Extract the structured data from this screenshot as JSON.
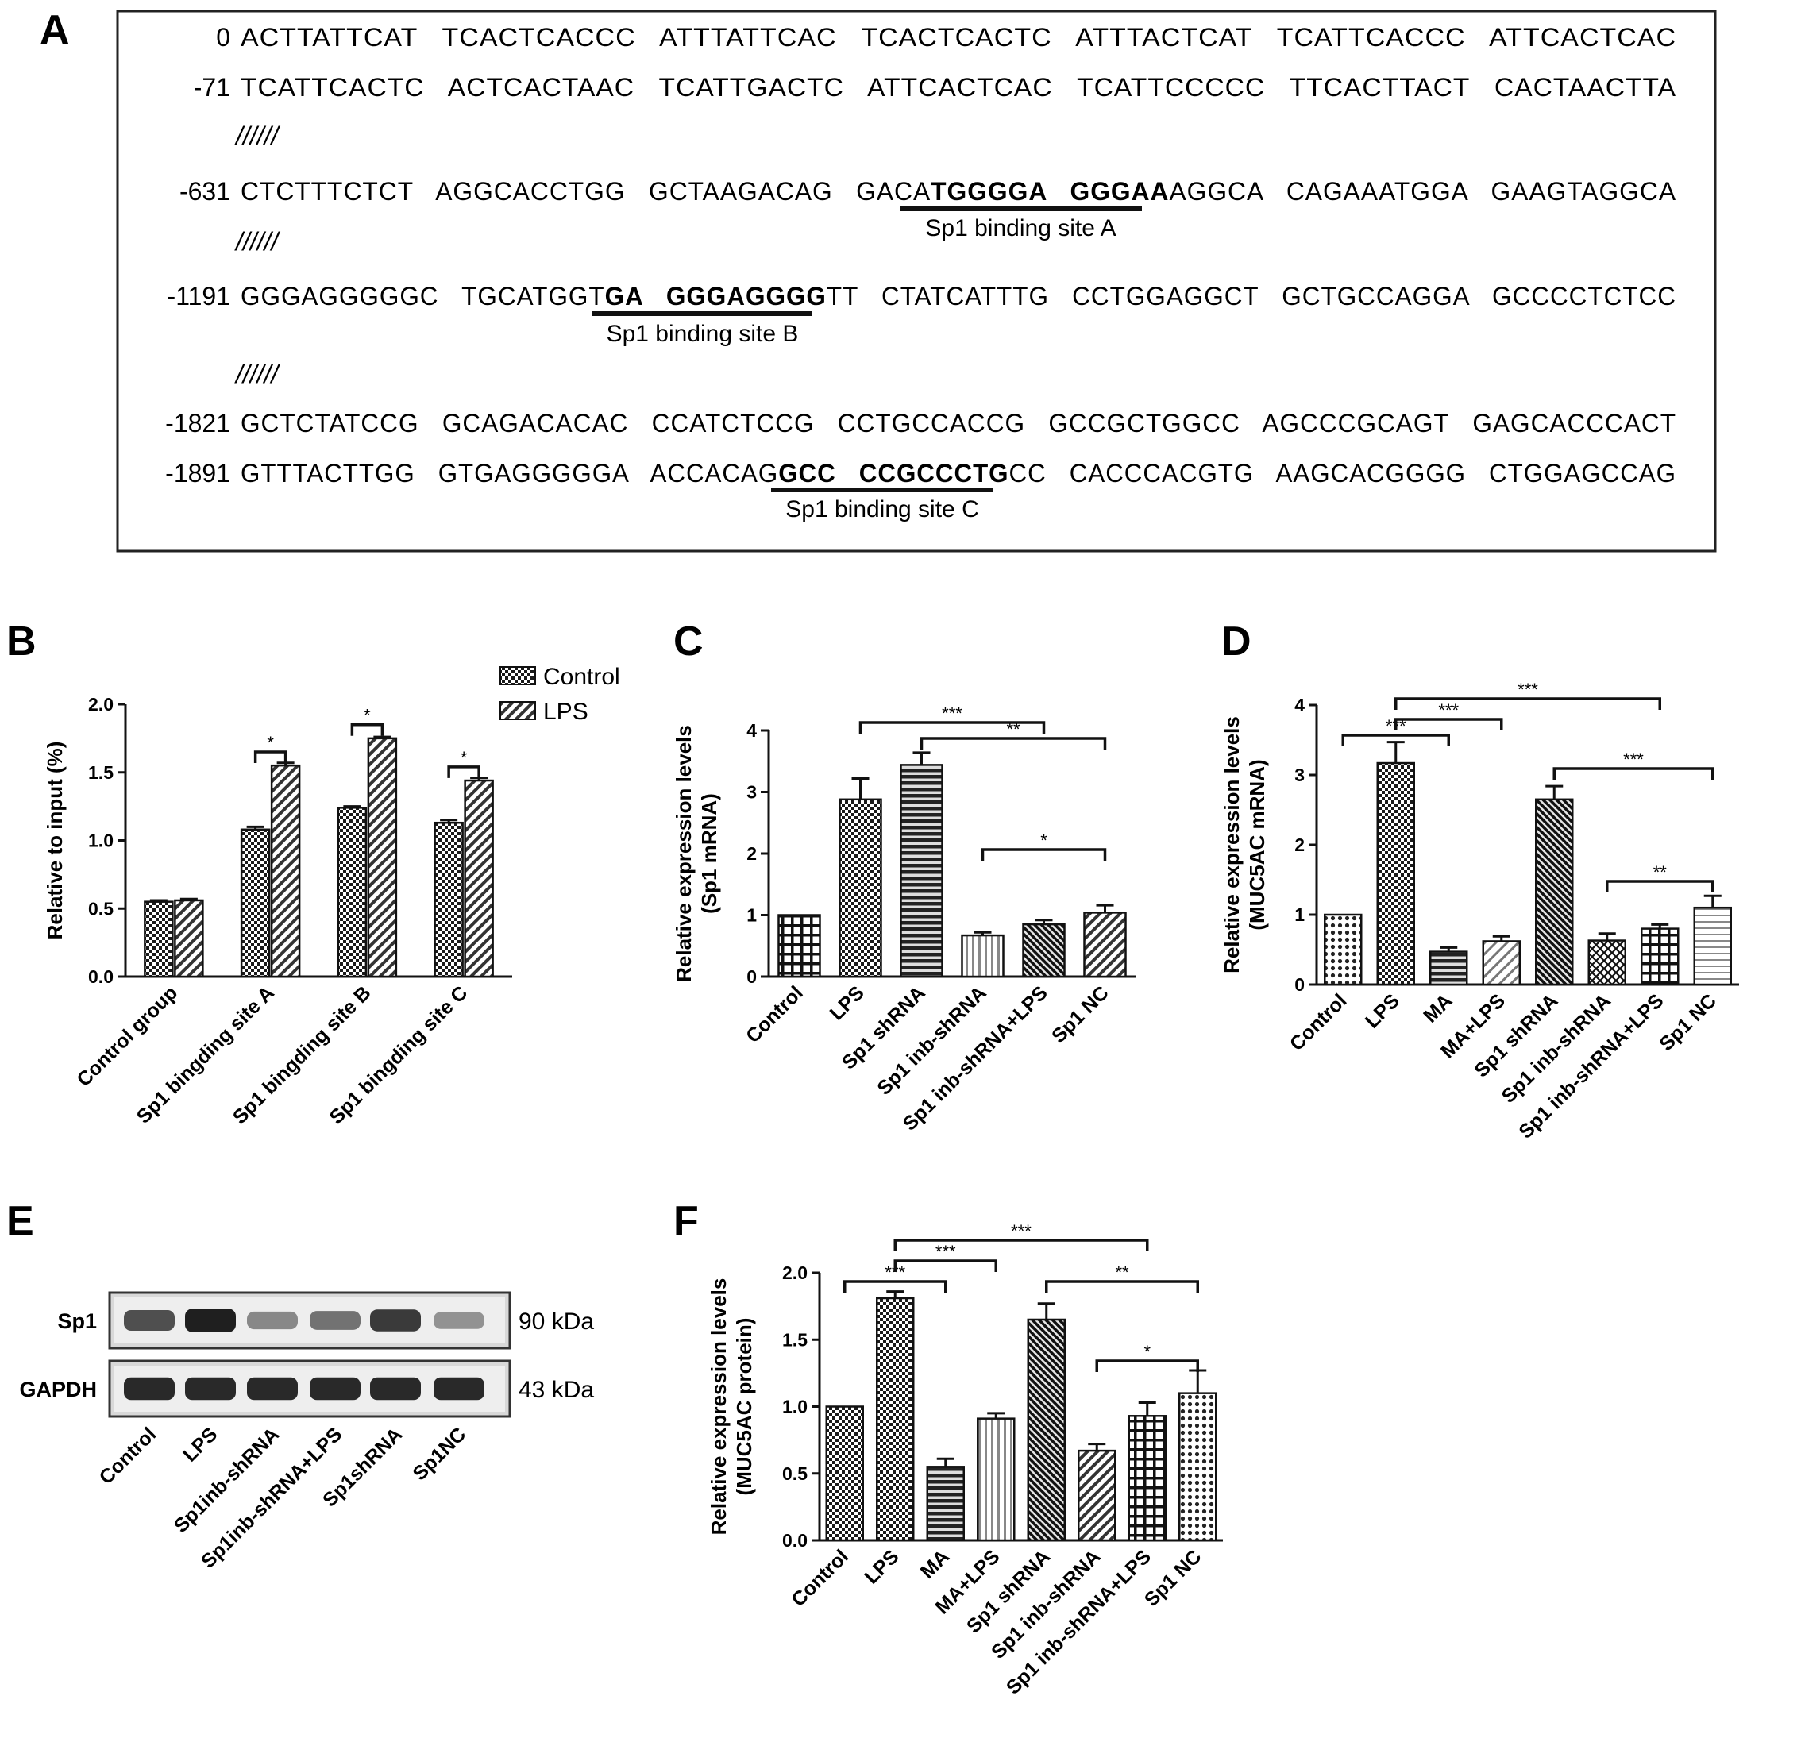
{
  "panel_a": {
    "letter": "A",
    "rows": [
      {
        "pos": "0",
        "seq": "ACTTATTCAT   TCACTCACCC   ATTTATTCAC   TCACTCACTC   ATTTACTCAT   TCATTCACCC   ATTCACTCAC"
      },
      {
        "pos": "-71",
        "seq": "TCATTCACTC   ACTCACTAAC   TCATTGACTC   ATTCACTCAC   TCATTCCCCC   TTCACTTACT   CACTAACTTA"
      },
      {
        "pos": "-631",
        "pre": "CTCTTTCTCT   AGGCACCTGG   GCTAAGACAG   GACA",
        "bold": "TGGGGA   GGGAA",
        "post": "AGGCA   CAGAAATGGA   GAAGTAGGCA"
      },
      {
        "pos": "-1191",
        "pre": "GGGAGGGGGC   TGCATGGT",
        "bold": "GA   GGGAGGGG",
        "post": "TT   CTATCATTTG   CCTGGAGGCT   GCTGCCAGGA   GCCCCTCTCC"
      },
      {
        "pos": "-1821",
        "seq": "GCTCTATCCG   GCAGACACAC   CCATCTCCG   CCTGCCACCG   GCCGCTGGCC   AGCCCGCAGT   GAGCACCCACT"
      },
      {
        "pos": "-1891",
        "pre": "GTTTACTTGG   GTGAGGGGGA   ACCACAG",
        "bold": "GCC   CCGCCCTG",
        "post": "CC   CACCCACGTG   AAGCACGGGG   CTGGAGCCAG"
      }
    ],
    "break_mark": "//////",
    "sites": [
      "Sp1 binding site A",
      "Sp1 binding site B",
      "Sp1 binding site C"
    ]
  },
  "panel_e": {
    "letter": "E",
    "rows": [
      {
        "label": "Sp1",
        "kda": "90 kDa",
        "intensity": [
          0.72,
          0.95,
          0.45,
          0.55,
          0.82,
          0.4
        ]
      },
      {
        "label": "GAPDH",
        "kda": "43 kDa",
        "intensity": [
          0.9,
          0.9,
          0.9,
          0.9,
          0.9,
          0.9
        ]
      }
    ],
    "lanes": [
      "Control",
      "LPS",
      "Sp1inb-shRNA",
      "Sp1inb-shRNA+LPS",
      "Sp1shRNA",
      "Sp1NC"
    ]
  },
  "chart_data": [
    {
      "panel": "B",
      "type": "bar",
      "ylabel": "Relative to input (%)",
      "ylim": [
        0,
        2.0
      ],
      "yticks": [
        "0.0",
        "0.5",
        "1.0",
        "1.5",
        "2.0"
      ],
      "categories": [
        "Control group",
        "Sp1 bingding site A",
        "Sp1 bingding site B",
        "Sp1 bingding site C"
      ],
      "series": [
        {
          "name": "Control",
          "values": [
            0.55,
            1.08,
            1.24,
            1.13
          ],
          "errors": [
            0.01,
            0.02,
            0.01,
            0.02
          ],
          "pattern": "check"
        },
        {
          "name": "LPS",
          "values": [
            0.56,
            1.55,
            1.75,
            1.44
          ],
          "errors": [
            0.01,
            0.02,
            0.01,
            0.02
          ],
          "pattern": "diag"
        }
      ],
      "legend": "top-right",
      "significance": [
        {
          "from": [
            1,
            0
          ],
          "to": [
            1,
            1
          ],
          "label": "*"
        },
        {
          "from": [
            2,
            0
          ],
          "to": [
            2,
            1
          ],
          "label": "*"
        },
        {
          "from": [
            3,
            0
          ],
          "to": [
            3,
            1
          ],
          "label": "*"
        }
      ]
    },
    {
      "panel": "C",
      "type": "bar",
      "ylabel": [
        "Relative expression levels",
        "(Sp1 mRNA)"
      ],
      "ylim": [
        0,
        4
      ],
      "yticks": [
        "0",
        "1",
        "2",
        "3",
        "4"
      ],
      "categories": [
        "Control",
        "LPS",
        "Sp1 shRNA",
        "Sp1 inb-shRNA",
        "Sp1 inb-shRNA+LPS",
        "Sp1 NC"
      ],
      "values": [
        1.0,
        2.88,
        3.44,
        0.67,
        0.85,
        1.04
      ],
      "errors": [
        0,
        0.34,
        0.2,
        0.05,
        0.07,
        0.12
      ],
      "patterns": [
        "grid",
        "check",
        "hstripe",
        "vstripe",
        "diagdense",
        "diag"
      ],
      "significance": [
        {
          "a": 1,
          "b": 4,
          "label": "***"
        },
        {
          "a": 2,
          "b": 5,
          "label": "**"
        },
        {
          "a": 3,
          "b": 5,
          "label": "*"
        }
      ]
    },
    {
      "panel": "D",
      "type": "bar",
      "ylabel": [
        "Relative expression levels",
        "(MUC5AC mRNA)"
      ],
      "ylim": [
        0,
        4
      ],
      "yticks": [
        "0",
        "1",
        "2",
        "3",
        "4"
      ],
      "categories": [
        "Control",
        "LPS",
        "MA",
        "MA+LPS",
        "Sp1 shRNA",
        "Sp1 inb-shRNA",
        "Sp1 inb-shRNA+LPS",
        "Sp1 NC"
      ],
      "values": [
        1.0,
        3.17,
        0.47,
        0.62,
        2.65,
        0.63,
        0.8,
        1.1
      ],
      "errors": [
        0,
        0.3,
        0.06,
        0.07,
        0.19,
        0.1,
        0.06,
        0.17
      ],
      "patterns": [
        "dots",
        "check",
        "hstripe",
        "diaglight",
        "diagdense",
        "cross",
        "grid",
        "hstripelight"
      ],
      "significance": [
        {
          "a": 0,
          "b": 2,
          "label": "***"
        },
        {
          "a": 1,
          "b": 3,
          "label": "***"
        },
        {
          "a": 1,
          "b": 6,
          "label": "***"
        },
        {
          "a": 4,
          "b": 7,
          "label": "***"
        },
        {
          "a": 5,
          "b": 7,
          "label": "**"
        }
      ]
    },
    {
      "panel": "F",
      "type": "bar",
      "ylabel": [
        "Relative expression levels",
        "(MUC5AC protein)"
      ],
      "ylim": [
        0,
        2.0
      ],
      "yticks": [
        "0.0",
        "0.5",
        "1.0",
        "1.5",
        "2.0"
      ],
      "categories": [
        "Control",
        "LPS",
        "MA",
        "MA+LPS",
        "Sp1 shRNA",
        "Sp1 inb-shRNA",
        "Sp1 inb-shRNA+LPS",
        "Sp1 NC"
      ],
      "values": [
        1.0,
        1.81,
        0.55,
        0.91,
        1.65,
        0.67,
        0.93,
        1.1
      ],
      "errors": [
        0,
        0.05,
        0.06,
        0.04,
        0.12,
        0.05,
        0.1,
        0.17
      ],
      "patterns": [
        "check",
        "check",
        "hstripe",
        "vstripe",
        "diagdense",
        "diag",
        "grid",
        "dots"
      ],
      "significance": [
        {
          "a": 0,
          "b": 2,
          "label": "***"
        },
        {
          "a": 1,
          "b": 3,
          "label": "***"
        },
        {
          "a": 1,
          "b": 6,
          "label": "***"
        },
        {
          "a": 4,
          "b": 7,
          "label": "**"
        },
        {
          "a": 5,
          "b": 7,
          "label": "*"
        }
      ]
    }
  ]
}
